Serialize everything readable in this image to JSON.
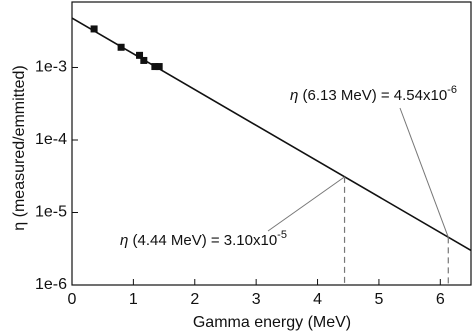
{
  "chart_data": {
    "type": "scatter",
    "xlabel": "Gamma energy (MeV)",
    "ylabel": "η (measured/emmitted)",
    "xlim": [
      0,
      6.5
    ],
    "ylim": [
      1e-06,
      0.008
    ],
    "log_y": true,
    "xticks": [
      0,
      1,
      2,
      3,
      4,
      5,
      6
    ],
    "yticks": [
      {
        "value": 1e-06,
        "label": "1e-6"
      },
      {
        "value": 1e-05,
        "label": "1e-5"
      },
      {
        "value": 0.0001,
        "label": "1e-4"
      },
      {
        "value": 0.001,
        "label": "1e-3"
      }
    ],
    "series": [
      {
        "type": "scatter",
        "color": "#111111",
        "x": [
          0.36,
          0.8,
          1.1,
          1.17,
          1.35,
          1.42
        ],
        "values": [
          0.0034,
          0.0019,
          0.00147,
          0.00125,
          0.00103,
          0.00103
        ]
      },
      {
        "type": "line",
        "color": "#111111",
        "x": [
          0,
          6.5
        ],
        "values": [
          0.0048,
          3e-06
        ]
      }
    ],
    "annotations": [
      {
        "symbol": "η",
        "text": " (4.44 MeV) = 3.10x10",
        "exponent": "-5",
        "x": 4.44,
        "y": 3.1e-05
      },
      {
        "symbol": "η",
        "text": " (6.13 MeV) = 4.54x10",
        "exponent": "-6",
        "x": 6.13,
        "y": 4.54e-06
      }
    ]
  }
}
